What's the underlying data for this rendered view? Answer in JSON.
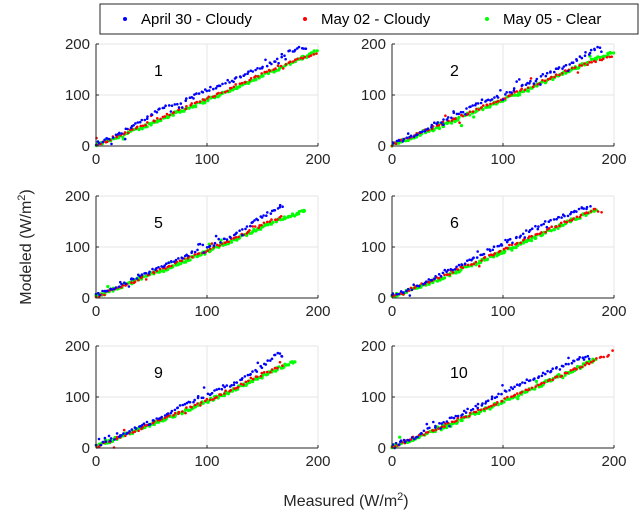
{
  "chart_data": {
    "type": "scatter",
    "xlabel_base": "Measured (W/m",
    "xlabel_sup": "2",
    "xlabel_end": ")",
    "ylabel_base": "Modeled (W/m",
    "ylabel_sup": "2",
    "ylabel_end": ")",
    "xlim": [
      0,
      200
    ],
    "ylim": [
      0,
      200
    ],
    "xticks": [
      "0",
      "100",
      "200"
    ],
    "yticks": [
      "0",
      "100",
      "200"
    ],
    "grid": true,
    "legend_position": "top",
    "series": [
      {
        "name": "April 30 - Cloudy",
        "color": "#0000ff"
      },
      {
        "name": "May 02 - Cloudy",
        "color": "#ff0000"
      },
      {
        "name": "May 05 - Clear",
        "color": "#00ff00"
      }
    ],
    "panels": [
      {
        "label": "1",
        "blue": [
          [
            0,
            5
          ],
          [
            20,
            22
          ],
          [
            40,
            48
          ],
          [
            60,
            75
          ],
          [
            80,
            88
          ],
          [
            100,
            110
          ],
          [
            120,
            125
          ],
          [
            140,
            145
          ],
          [
            160,
            165
          ],
          [
            170,
            180
          ],
          [
            180,
            190
          ],
          [
            185,
            192
          ],
          [
            190,
            190
          ]
        ],
        "red": [
          [
            0,
            2
          ],
          [
            40,
            38
          ],
          [
            80,
            75
          ],
          [
            120,
            112
          ],
          [
            160,
            152
          ],
          [
            200,
            185
          ]
        ],
        "green": [
          [
            0,
            2
          ],
          [
            40,
            35
          ],
          [
            80,
            72
          ],
          [
            120,
            108
          ],
          [
            160,
            148
          ],
          [
            200,
            186
          ]
        ]
      },
      {
        "label": "2",
        "blue": [
          [
            0,
            5
          ],
          [
            20,
            20
          ],
          [
            40,
            45
          ],
          [
            60,
            65
          ],
          [
            80,
            85
          ],
          [
            100,
            100
          ],
          [
            120,
            120
          ],
          [
            140,
            142
          ],
          [
            160,
            160
          ],
          [
            175,
            180
          ],
          [
            185,
            192
          ],
          [
            190,
            190
          ]
        ],
        "red": [
          [
            0,
            2
          ],
          [
            40,
            40
          ],
          [
            80,
            75
          ],
          [
            120,
            112
          ],
          [
            160,
            150
          ],
          [
            200,
            178
          ]
        ],
        "green": [
          [
            0,
            2
          ],
          [
            40,
            35
          ],
          [
            80,
            72
          ],
          [
            120,
            108
          ],
          [
            160,
            148
          ],
          [
            200,
            186
          ]
        ]
      },
      {
        "label": "5",
        "blue": [
          [
            0,
            5
          ],
          [
            20,
            22
          ],
          [
            40,
            45
          ],
          [
            60,
            62
          ],
          [
            80,
            82
          ],
          [
            100,
            100
          ],
          [
            120,
            118
          ],
          [
            140,
            145
          ],
          [
            150,
            160
          ],
          [
            160,
            170
          ],
          [
            165,
            180
          ],
          [
            170,
            178
          ]
        ],
        "red": [
          [
            0,
            2
          ],
          [
            40,
            38
          ],
          [
            80,
            75
          ],
          [
            120,
            112
          ],
          [
            150,
            145
          ],
          [
            170,
            162
          ]
        ],
        "green": [
          [
            0,
            2
          ],
          [
            40,
            38
          ],
          [
            80,
            72
          ],
          [
            120,
            110
          ],
          [
            160,
            150
          ],
          [
            190,
            172
          ]
        ]
      },
      {
        "label": "6",
        "blue": [
          [
            0,
            5
          ],
          [
            20,
            20
          ],
          [
            40,
            42
          ],
          [
            60,
            62
          ],
          [
            80,
            85
          ],
          [
            100,
            105
          ],
          [
            120,
            128
          ],
          [
            140,
            150
          ],
          [
            160,
            165
          ],
          [
            170,
            175
          ],
          [
            180,
            178
          ]
        ],
        "red": [
          [
            0,
            2
          ],
          [
            40,
            38
          ],
          [
            80,
            75
          ],
          [
            120,
            115
          ],
          [
            160,
            152
          ],
          [
            190,
            182
          ]
        ],
        "green": [
          [
            0,
            2
          ],
          [
            40,
            35
          ],
          [
            80,
            72
          ],
          [
            120,
            110
          ],
          [
            160,
            150
          ],
          [
            185,
            175
          ]
        ]
      },
      {
        "label": "9",
        "blue": [
          [
            0,
            5
          ],
          [
            20,
            20
          ],
          [
            40,
            45
          ],
          [
            60,
            62
          ],
          [
            80,
            85
          ],
          [
            100,
            105
          ],
          [
            120,
            122
          ],
          [
            140,
            145
          ],
          [
            150,
            160
          ],
          [
            160,
            180
          ],
          [
            165,
            185
          ],
          [
            170,
            178
          ]
        ],
        "red": [
          [
            0,
            2
          ],
          [
            40,
            38
          ],
          [
            80,
            75
          ],
          [
            120,
            112
          ],
          [
            150,
            145
          ],
          [
            170,
            162
          ]
        ],
        "green": [
          [
            0,
            2
          ],
          [
            40,
            38
          ],
          [
            80,
            72
          ],
          [
            120,
            110
          ],
          [
            160,
            152
          ],
          [
            180,
            172
          ]
        ]
      },
      {
        "label": "10",
        "blue": [
          [
            0,
            5
          ],
          [
            20,
            20
          ],
          [
            40,
            45
          ],
          [
            60,
            65
          ],
          [
            80,
            85
          ],
          [
            100,
            110
          ],
          [
            120,
            130
          ],
          [
            140,
            148
          ],
          [
            160,
            165
          ],
          [
            170,
            175
          ],
          [
            180,
            178
          ]
        ],
        "red": [
          [
            0,
            2
          ],
          [
            40,
            38
          ],
          [
            80,
            75
          ],
          [
            120,
            112
          ],
          [
            160,
            150
          ],
          [
            200,
            188
          ]
        ],
        "green": [
          [
            0,
            2
          ],
          [
            40,
            35
          ],
          [
            80,
            72
          ],
          [
            120,
            110
          ],
          [
            160,
            150
          ],
          [
            185,
            175
          ]
        ]
      }
    ]
  }
}
